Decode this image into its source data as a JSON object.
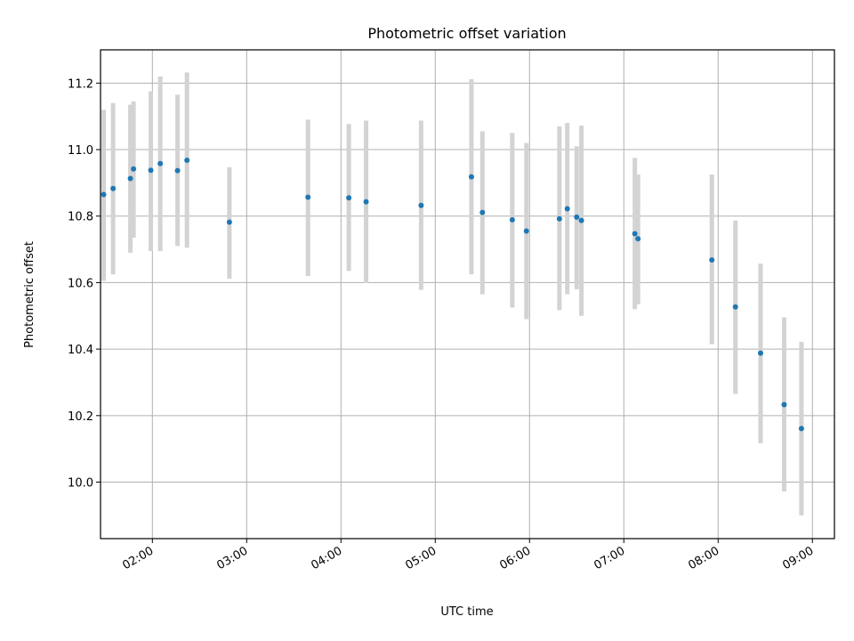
{
  "chart_data": {
    "type": "scatter",
    "title": "Photometric offset variation",
    "xlabel": "UTC time",
    "ylabel": "Photometric offset",
    "x_ticks": [
      "02:00",
      "03:00",
      "04:00",
      "05:00",
      "06:00",
      "07:00",
      "08:00",
      "09:00"
    ],
    "y_ticks": [
      "10.0",
      "10.2",
      "10.4",
      "10.6",
      "10.8",
      "11.0",
      "11.2"
    ],
    "xlim": [
      "01:27",
      "09:14"
    ],
    "ylim": [
      9.83,
      11.3
    ],
    "grid": true,
    "marker_color": "#1f77b4",
    "errorbar_color": "#d3d3d3",
    "series": [
      {
        "points": [
          {
            "x": "01:29",
            "y": 10.865,
            "lo": 10.605,
            "hi": 11.12
          },
          {
            "x": "01:35",
            "y": 10.883,
            "lo": 10.625,
            "hi": 11.14
          },
          {
            "x": "01:46",
            "y": 10.913,
            "lo": 10.69,
            "hi": 11.135
          },
          {
            "x": "01:48",
            "y": 10.942,
            "lo": 10.735,
            "hi": 11.145
          },
          {
            "x": "01:59",
            "y": 10.938,
            "lo": 10.695,
            "hi": 11.175
          },
          {
            "x": "02:05",
            "y": 10.958,
            "lo": 10.695,
            "hi": 11.22
          },
          {
            "x": "02:16",
            "y": 10.937,
            "lo": 10.71,
            "hi": 11.165
          },
          {
            "x": "02:22",
            "y": 10.968,
            "lo": 10.705,
            "hi": 11.232
          },
          {
            "x": "02:49",
            "y": 10.782,
            "lo": 10.612,
            "hi": 10.947
          },
          {
            "x": "03:39",
            "y": 10.857,
            "lo": 10.62,
            "hi": 11.09
          },
          {
            "x": "04:05",
            "y": 10.855,
            "lo": 10.635,
            "hi": 11.077
          },
          {
            "x": "04:16",
            "y": 10.843,
            "lo": 10.598,
            "hi": 11.087
          },
          {
            "x": "04:51",
            "y": 10.832,
            "lo": 10.578,
            "hi": 11.087
          },
          {
            "x": "05:23",
            "y": 10.918,
            "lo": 10.625,
            "hi": 11.212
          },
          {
            "x": "05:30",
            "y": 10.811,
            "lo": 10.565,
            "hi": 11.055
          },
          {
            "x": "05:49",
            "y": 10.789,
            "lo": 10.525,
            "hi": 11.05
          },
          {
            "x": "05:58",
            "y": 10.755,
            "lo": 10.49,
            "hi": 11.02
          },
          {
            "x": "06:19",
            "y": 10.792,
            "lo": 10.517,
            "hi": 11.07
          },
          {
            "x": "06:24",
            "y": 10.822,
            "lo": 10.565,
            "hi": 11.08
          },
          {
            "x": "06:30",
            "y": 10.797,
            "lo": 10.58,
            "hi": 11.01
          },
          {
            "x": "06:33",
            "y": 10.787,
            "lo": 10.5,
            "hi": 11.072
          },
          {
            "x": "07:07",
            "y": 10.747,
            "lo": 10.52,
            "hi": 10.975
          },
          {
            "x": "07:09",
            "y": 10.732,
            "lo": 10.535,
            "hi": 10.925
          },
          {
            "x": "07:56",
            "y": 10.668,
            "lo": 10.415,
            "hi": 10.925
          },
          {
            "x": "08:11",
            "y": 10.527,
            "lo": 10.265,
            "hi": 10.787
          },
          {
            "x": "08:27",
            "y": 10.388,
            "lo": 10.117,
            "hi": 10.657
          },
          {
            "x": "08:42",
            "y": 10.233,
            "lo": 9.972,
            "hi": 10.495
          },
          {
            "x": "08:53",
            "y": 10.161,
            "lo": 9.9,
            "hi": 10.422
          }
        ]
      }
    ]
  }
}
